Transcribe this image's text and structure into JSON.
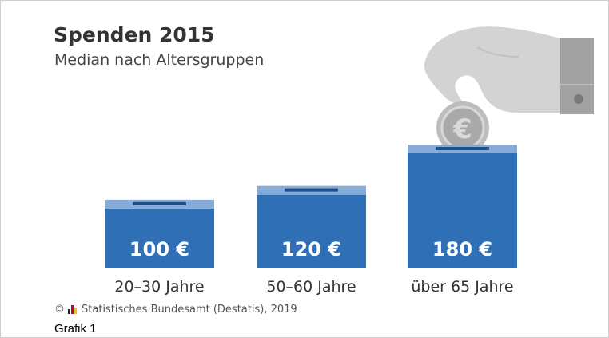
{
  "header": {
    "title": "Spenden 2015",
    "subtitle": "Median nach Altersgruppen"
  },
  "chart_data": {
    "type": "bar",
    "title": "Spenden 2015",
    "subtitle": "Median nach Altersgruppen",
    "categories": [
      "20–30 Jahre",
      "50–60 Jahre",
      "über 65 Jahre"
    ],
    "values": [
      100,
      120,
      180
    ],
    "value_labels": [
      "100 €",
      "120 €",
      "180 €"
    ],
    "unit": "€",
    "style": "donation boxes (pictogram bars)",
    "xlabel": "",
    "ylabel": "",
    "grid": false,
    "legend": "none"
  },
  "illustration": {
    "hand_icon": "hand-inserting-coin-icon",
    "coin_symbol": "€"
  },
  "footer": {
    "copyright_symbol": "©",
    "source": "Statistisches Bundesamt (Destatis), 2019",
    "caption": "Grafik 1"
  },
  "colors": {
    "bar_fill": "#2f6fb5",
    "bar_lid": "#86abd6",
    "slot": "#1f4f8a",
    "value_text": "#ffffff",
    "hand": "#d3d3d3",
    "sleeve": "#a2a2a2",
    "coin": "#c4c4c4",
    "title_text": "#333333"
  }
}
